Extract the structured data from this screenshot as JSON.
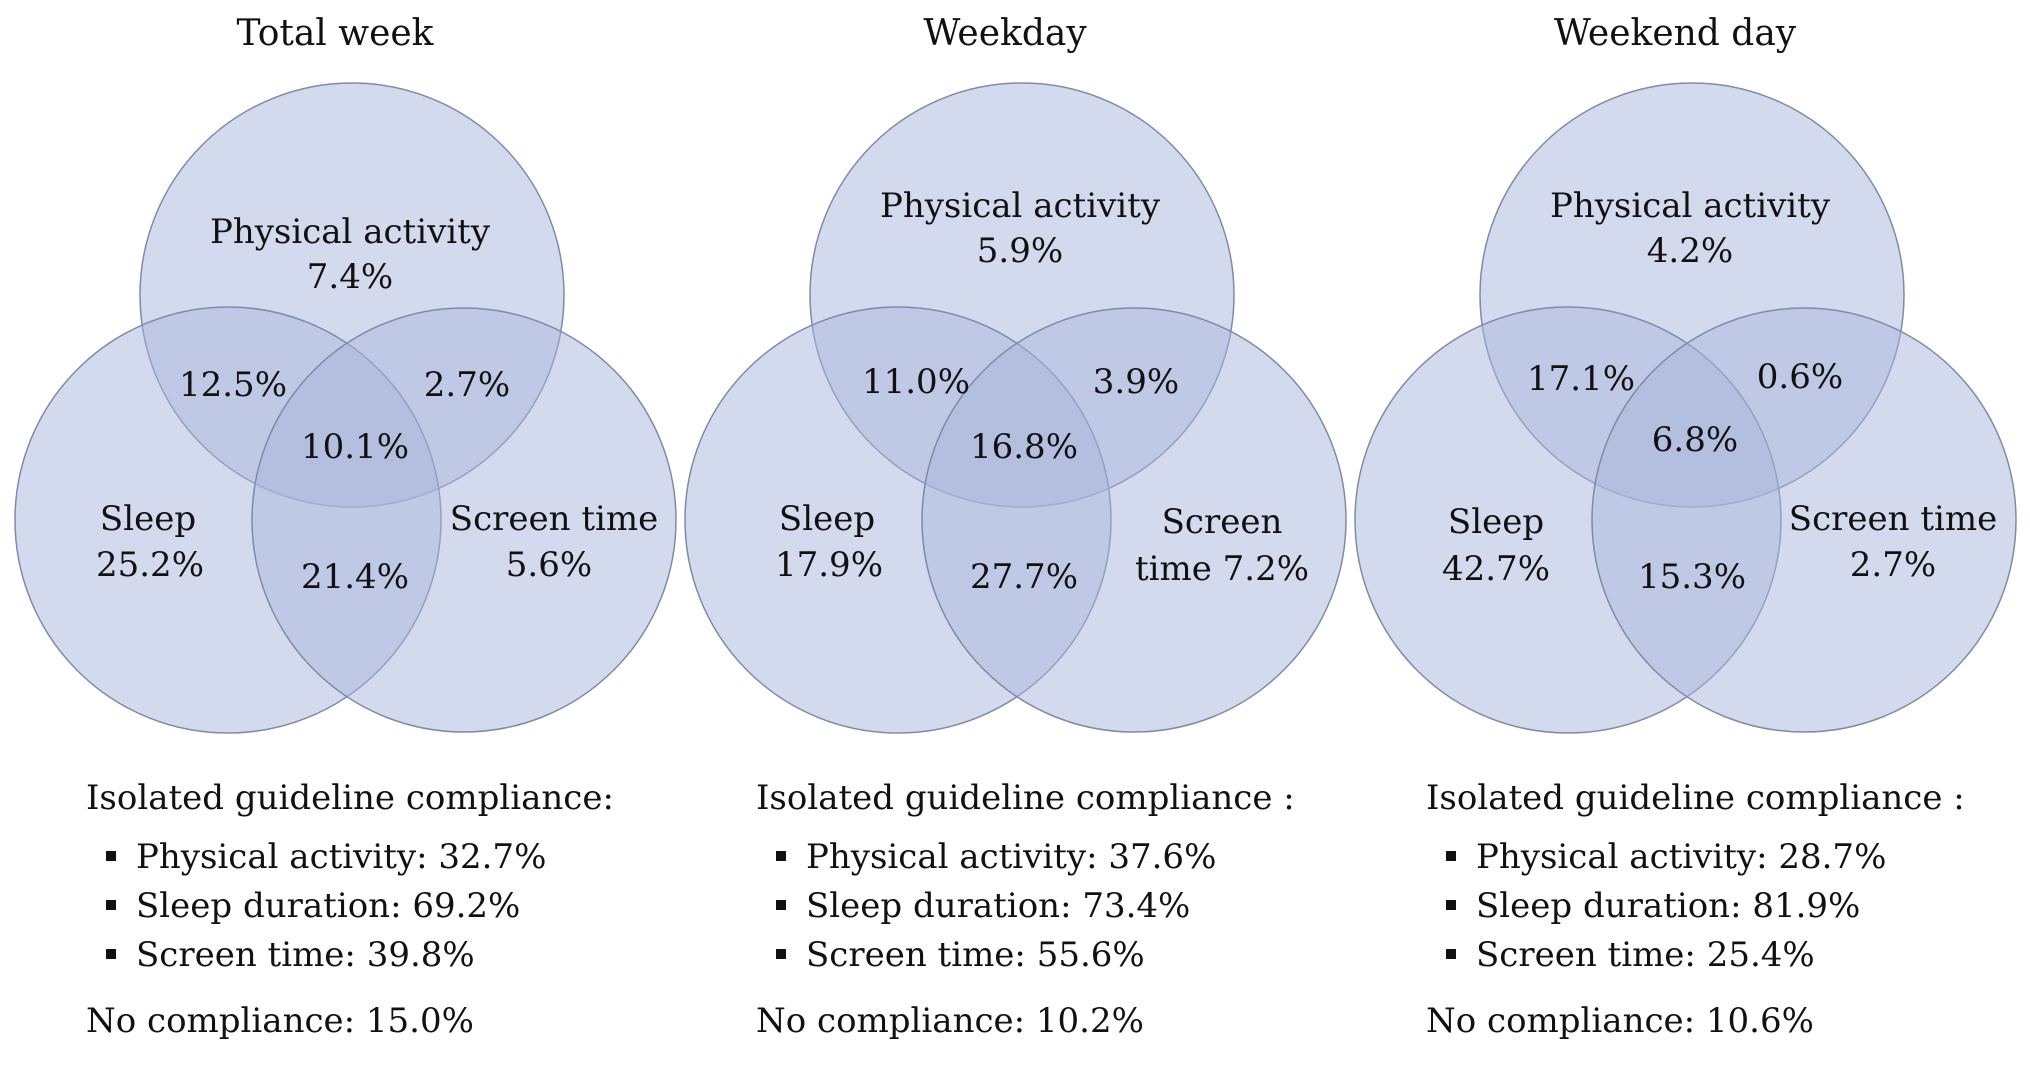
{
  "panels": [
    {
      "title": "Total week",
      "venn": {
        "physical_activity_label": "Physical activity",
        "physical_activity_value": "7.4%",
        "sleep_label": "Sleep",
        "sleep_value": "25.2%",
        "screen_label_line1": "Screen time",
        "screen_label_line2": "5.6%",
        "pa_sleep": "12.5%",
        "pa_screen": "2.7%",
        "all_three": "10.1%",
        "sleep_screen": "21.4%"
      },
      "summary": {
        "heading": "Isolated guideline compliance:",
        "items": [
          "Physical activity: 32.7%",
          "Sleep duration: 69.2%",
          "Screen time: 39.8%"
        ],
        "no_compliance": "No compliance: 15.0%"
      }
    },
    {
      "title": "Weekday",
      "venn": {
        "physical_activity_label": "Physical activity",
        "physical_activity_value": "5.9%",
        "sleep_label": "Sleep",
        "sleep_value": "17.9%",
        "screen_label_line1": "Screen",
        "screen_label_line2": "time 7.2%",
        "pa_sleep": "11.0%",
        "pa_screen": "3.9%",
        "all_three": "16.8%",
        "sleep_screen": "27.7%"
      },
      "summary": {
        "heading": "Isolated guideline compliance :",
        "items": [
          "Physical activity: 37.6%",
          "Sleep duration: 73.4%",
          "Screen time: 55.6%"
        ],
        "no_compliance": "No compliance: 10.2%"
      }
    },
    {
      "title": "Weekend day",
      "venn": {
        "physical_activity_label": "Physical activity",
        "physical_activity_value": "4.2%",
        "sleep_label": "Sleep",
        "sleep_value": "42.7%",
        "screen_label_line1": "Screen time",
        "screen_label_line2": "2.7%",
        "pa_sleep": "17.1%",
        "pa_screen": "0.6%",
        "all_three": "6.8%",
        "sleep_screen": "15.3%"
      },
      "summary": {
        "heading": "Isolated guideline compliance :",
        "items": [
          "Physical activity: 28.7%",
          "Sleep duration: 81.9%",
          "Screen time: 25.4%"
        ],
        "no_compliance": "No compliance: 10.6%"
      }
    }
  ],
  "colors": {
    "circle_fill": "#a9b6dc",
    "circle_stroke": "#7e8ba8",
    "text": "#111111"
  }
}
